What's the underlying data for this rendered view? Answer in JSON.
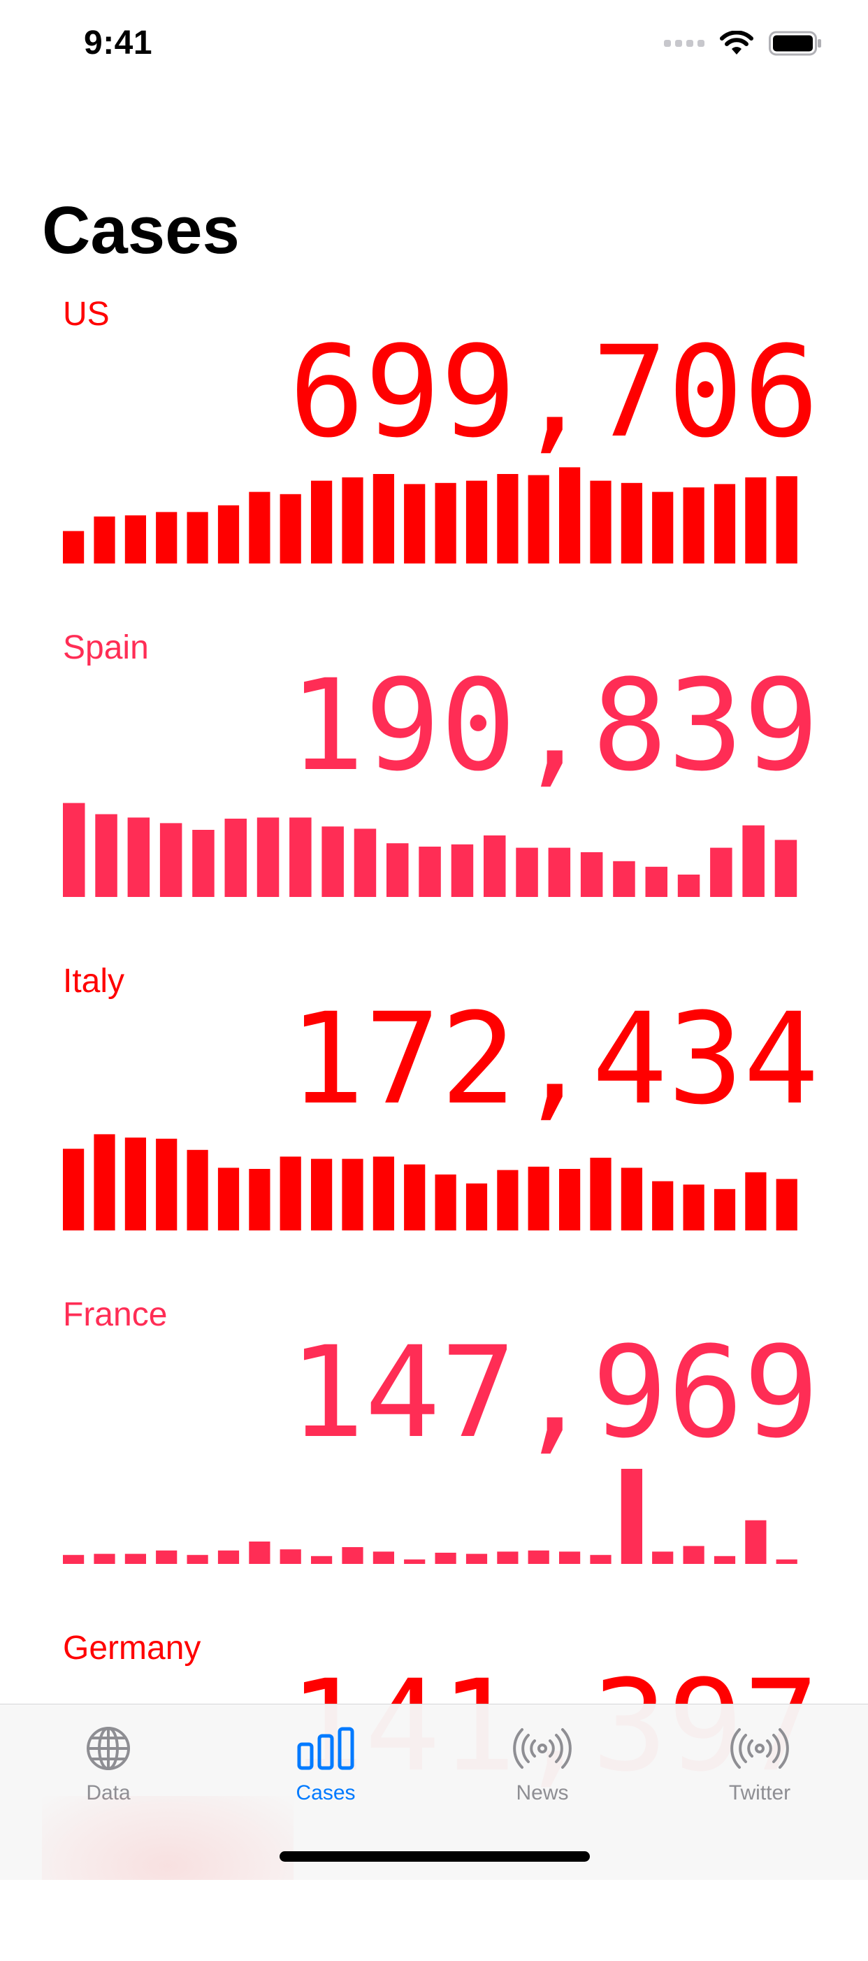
{
  "status_bar": {
    "time": "9:41"
  },
  "title": "Cases",
  "colors": {
    "red": "#ff0000",
    "pink": "#ff2d55",
    "tab_active": "#007aff",
    "tab_inactive": "#8e8e93"
  },
  "countries": [
    {
      "name": "US",
      "count": "699,706",
      "color": "#ff0000",
      "daily": [
        29,
        42,
        43,
        46,
        46,
        52,
        64,
        62,
        74,
        77,
        80,
        71,
        72,
        74,
        80,
        79,
        86,
        74,
        72,
        64,
        68,
        71,
        77,
        78
      ]
    },
    {
      "name": "Spain",
      "count": "190,839",
      "color": "#ff2d55",
      "daily": [
        84,
        74,
        71,
        66,
        60,
        70,
        71,
        71,
        63,
        61,
        48,
        45,
        47,
        55,
        44,
        44,
        40,
        32,
        27,
        20,
        44,
        64,
        51
      ]
    },
    {
      "name": "Italy",
      "count": "172,434",
      "color": "#ff0000",
      "daily": [
        73,
        86,
        83,
        82,
        72,
        56,
        55,
        66,
        64,
        64,
        66,
        59,
        50,
        42,
        54,
        57,
        55,
        65,
        56,
        44,
        41,
        37,
        52,
        46
      ]
    },
    {
      "name": "France",
      "count": "147,969",
      "color": "#ff2d55",
      "daily": [
        8,
        9,
        9,
        12,
        8,
        12,
        20,
        13,
        7,
        15,
        11,
        4,
        10,
        9,
        11,
        12,
        11,
        8,
        85,
        11,
        16,
        7,
        39,
        4
      ]
    },
    {
      "name": "Germany",
      "count": "141,397",
      "color": "#ff0000",
      "daily": []
    }
  ],
  "tabs": [
    {
      "label": "Data",
      "icon": "globe-icon",
      "active": false
    },
    {
      "label": "Cases",
      "icon": "chart-bars-icon",
      "active": true
    },
    {
      "label": "News",
      "icon": "broadcast-icon",
      "active": false
    },
    {
      "label": "Twitter",
      "icon": "broadcast-icon",
      "active": false
    }
  ]
}
